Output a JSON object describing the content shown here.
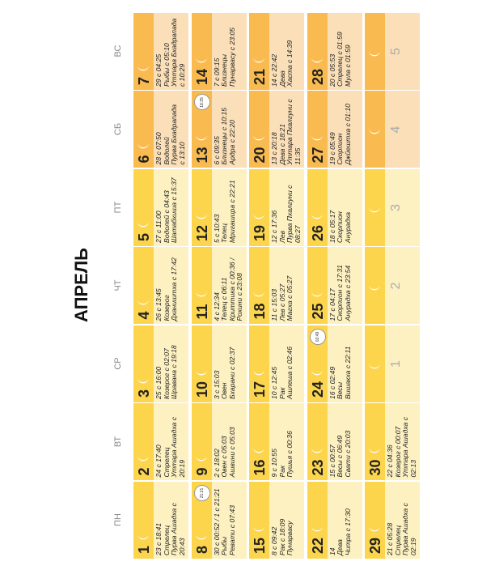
{
  "header": {
    "title": "АПРЕЛЬ"
  },
  "weekdays": [
    "ПН",
    "ВТ",
    "СР",
    "ЧТ",
    "ПТ",
    "СБ",
    "ВС"
  ],
  "weeks": [
    [
      {
        "day": "1",
        "lines": [
          "23 с 18:41",
          "Стрелец",
          "Пурва Ашадха с",
          "20:43"
        ]
      },
      {
        "day": "2",
        "lines": [
          "24 с 17:40",
          "Стрелец",
          "Уттара Ашадха с",
          "20:19"
        ]
      },
      {
        "day": "3",
        "lines": [
          "25 с 16:00",
          "Козерог с 02:07",
          "Шравана с 19:18"
        ]
      },
      {
        "day": "4",
        "lines": [
          "26 с 13:45",
          "Козерог",
          "Дхаништха с 17:42"
        ]
      },
      {
        "day": "5",
        "lines": [
          "27 с 11:00",
          "Водолей с 04:43",
          "Шатабхиша с 15:37"
        ]
      },
      {
        "day": "6",
        "lines": [
          "28 с 07:50",
          "Водолей",
          "Пурва Бхадрапада",
          "с 13:10"
        ]
      },
      {
        "day": "7",
        "lines": [
          "29 с 04:25",
          "Рыбы с 05:10",
          "Уттара Бхадрапада",
          "с 10:29"
        ]
      }
    ],
    [
      {
        "day": "8",
        "badge": "21:21",
        "lines": [
          "30 с 00:52 / 1 с 21:21",
          "Рыбы",
          "Ревати с 07:43"
        ]
      },
      {
        "day": "9",
        "lines": [
          "2 с 18:02",
          "Овен с 05:03",
          "Ашвини с 05:03"
        ]
      },
      {
        "day": "10",
        "lines": [
          "3 с 15:03",
          "Овен",
          "Бхарани с 02:37"
        ]
      },
      {
        "day": "11",
        "lines": [
          "4 с 12:34",
          "Телец с 06:11",
          "Криттика с 00:36 /",
          "Рохини с 23:08"
        ]
      },
      {
        "day": "12",
        "lines": [
          "5 с 10:43",
          "Телец",
          "Мригашира с 22:21"
        ]
      },
      {
        "day": "13",
        "badge": "18:35",
        "lines": [
          "6 с 09:35",
          "Близнецы с 10:15",
          "Ардра с 22:20"
        ]
      },
      {
        "day": "14",
        "lines": [
          "7 с 09:15",
          "Близнецы",
          "Пунарвасу с 23:05"
        ]
      }
    ],
    [
      {
        "day": "15",
        "lines": [
          "8 с 09:42",
          "Рак с 18:09",
          "Пунарвасу"
        ]
      },
      {
        "day": "16",
        "lines": [
          "9 с 10:55",
          "Рак",
          "Пушья с 00:36"
        ]
      },
      {
        "day": "17",
        "lines": [
          "10 с 12:45",
          "Рак",
          "Ашлеша с 02:46"
        ]
      },
      {
        "day": "18",
        "lines": [
          "11 с 15:03",
          "Лев с 05:27",
          "Магха с 05:27"
        ]
      },
      {
        "day": "19",
        "lines": [
          "12 с 17:36",
          "Лев",
          "Пурва Пхалгуни с",
          "08:27"
        ]
      },
      {
        "day": "20",
        "lines": [
          "13 с 20:18",
          "Дева с 18:21",
          "Уттара Пхалгуни с",
          "11:35"
        ]
      },
      {
        "day": "21",
        "lines": [
          "14 с 22:42",
          "Дева",
          "Хаста с 14:39"
        ]
      }
    ],
    [
      {
        "day": "22",
        "lines": [
          "14",
          "Дева",
          "Читра с 17:30"
        ]
      },
      {
        "day": "23",
        "lines": [
          "15 с 00:57",
          "Весы с 06:49",
          "Свати с 20:03"
        ]
      },
      {
        "day": "24",
        "badge": "02:49",
        "lines": [
          "16 с 02:49",
          "Весы",
          "Вишакха с 22:11"
        ]
      },
      {
        "day": "25",
        "lines": [
          "17 с 04:17",
          "Скорпион с 17:31",
          "Анурадха с 23:54"
        ]
      },
      {
        "day": "26",
        "lines": [
          "18 с 05:17",
          "Скорпион",
          "Анурадха"
        ]
      },
      {
        "day": "27",
        "lines": [
          "19 с 05:49",
          "Скорпион",
          "Джйештха с 01:10"
        ]
      },
      {
        "day": "28",
        "lines": [
          "20 с 05:53",
          "Стрелец с 01:59",
          "Мула с 01:59"
        ]
      }
    ],
    [
      {
        "day": "29",
        "lines": [
          "21 с 05:28",
          "Стрелец",
          "Пурва Ашадха с",
          "02:19"
        ]
      },
      {
        "day": "30",
        "lines": [
          "22 с 04:36",
          "Козерог с 00:07",
          "Уттара Ашадха с",
          "02:13"
        ]
      }
    ]
  ],
  "next_month": [
    "1",
    "2",
    "3",
    "4",
    "5"
  ]
}
